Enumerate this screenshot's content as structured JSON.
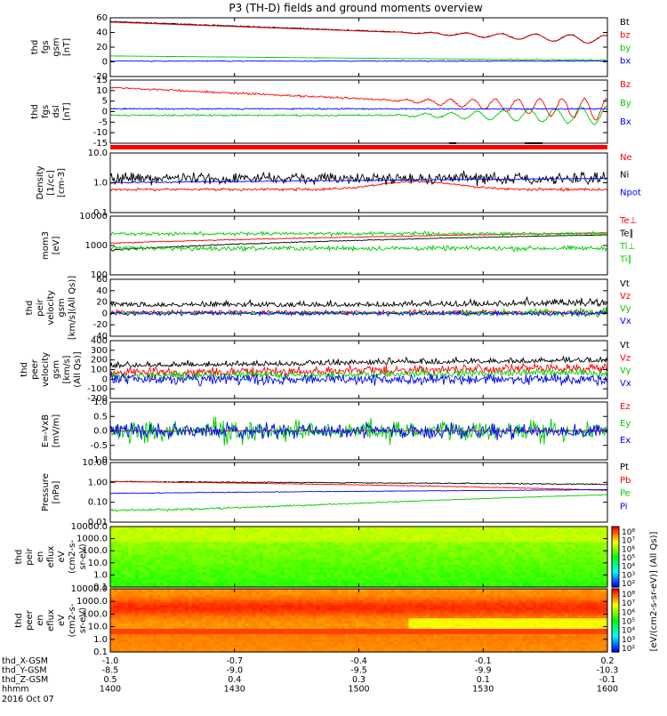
{
  "title": "P3 (TH-D) fields and ground moments overview",
  "colors": {
    "black": "#000000",
    "red": "#ff0000",
    "green": "#00cc00",
    "blue": "#0000ff",
    "bar": "#ff0000"
  },
  "chart_data": [
    {
      "type": "line",
      "id": "fgs",
      "ylabel": [
        "thd",
        "fgs",
        "gsm",
        "[nT]"
      ],
      "ylim": [
        -20,
        60
      ],
      "scale": "linear",
      "yticks": [
        "60",
        "40",
        "20",
        "0",
        "-20"
      ],
      "series": [
        {
          "name": "Bt",
          "color": "black"
        },
        {
          "name": "bz",
          "color": "red"
        },
        {
          "name": "by",
          "color": "green"
        },
        {
          "name": "bx",
          "color": "blue"
        }
      ]
    },
    {
      "type": "line",
      "id": "fgs_dsl",
      "ylabel": [
        "thd",
        "fgs",
        "dsl",
        "[nT]"
      ],
      "ylim": [
        -18,
        16
      ],
      "scale": "linear",
      "yticks": [
        "15",
        "10",
        "5",
        "0",
        "-5",
        "-10",
        "-15"
      ],
      "series": [
        {
          "name": "Bz",
          "color": "red"
        },
        {
          "name": "By",
          "color": "green"
        },
        {
          "name": "Bx",
          "color": "blue"
        }
      ]
    },
    {
      "type": "line",
      "id": "density",
      "ylabel": [
        "Density",
        "[1/cc]",
        "[cm-3]"
      ],
      "ylim": [
        0.1,
        10
      ],
      "scale": "log",
      "yticks": [
        "10.0",
        "1.0",
        "0.1"
      ],
      "series": [
        {
          "name": "Ne",
          "color": "red"
        },
        {
          "name": "Ni",
          "color": "black"
        },
        {
          "name": "Npot",
          "color": "blue"
        }
      ]
    },
    {
      "type": "line",
      "id": "temp",
      "ylabel": [
        "mom3",
        "[eV]"
      ],
      "ylim": [
        100,
        10000
      ],
      "scale": "log",
      "yticks": [
        "10000",
        "1000",
        "100"
      ],
      "series": [
        {
          "name": "Te⊥",
          "color": "red"
        },
        {
          "name": "Te∥",
          "color": "black"
        },
        {
          "name": "Ti⊥",
          "color": "green"
        },
        {
          "name": "Ti∥",
          "color": "green"
        }
      ]
    },
    {
      "type": "line",
      "id": "peir",
      "ylabel": [
        "thd",
        "peir",
        "velocity",
        "gsm",
        "[km/s](All Qs)]"
      ],
      "ylim": [
        -40,
        60
      ],
      "scale": "linear",
      "yticks": [
        "60",
        "40",
        "20",
        "0",
        "-20",
        "-40"
      ],
      "series": [
        {
          "name": "Vt",
          "color": "black"
        },
        {
          "name": "Vz",
          "color": "red"
        },
        {
          "name": "Vy",
          "color": "green"
        },
        {
          "name": "Vx",
          "color": "blue"
        }
      ]
    },
    {
      "type": "line",
      "id": "peer",
      "ylabel": [
        "thd",
        "peer",
        "velocity",
        "gsm",
        "[km/s]",
        "(All Qs)]"
      ],
      "ylim": [
        -200,
        400
      ],
      "scale": "linear",
      "yticks": [
        "400",
        "300",
        "200",
        "100",
        "0",
        "-100",
        "-200"
      ],
      "series": [
        {
          "name": "Vt",
          "color": "black"
        },
        {
          "name": "Vz",
          "color": "red"
        },
        {
          "name": "Vy",
          "color": "green"
        },
        {
          "name": "Vx",
          "color": "blue"
        }
      ]
    },
    {
      "type": "line",
      "id": "efield",
      "ylabel": [
        "E=-VxB",
        "[mV/m]"
      ],
      "ylim": [
        -1,
        1
      ],
      "scale": "linear",
      "yticks": [
        "1.0",
        "0.5",
        "0.0",
        "-0.5",
        "-1.0"
      ],
      "series": [
        {
          "name": "Ez",
          "color": "red"
        },
        {
          "name": "Ey",
          "color": "green"
        },
        {
          "name": "Ex",
          "color": "blue"
        }
      ]
    },
    {
      "type": "line",
      "id": "pressure",
      "ylabel": [
        "Pressure",
        "[nPa]"
      ],
      "ylim": [
        0.01,
        10
      ],
      "scale": "log",
      "yticks": [
        "10.00",
        "1.00",
        "0.10",
        "0.01"
      ],
      "series": [
        {
          "name": "Pt",
          "color": "black"
        },
        {
          "name": "Pb",
          "color": "red"
        },
        {
          "name": "Pe",
          "color": "green"
        },
        {
          "name": "Pi",
          "color": "blue"
        }
      ]
    },
    {
      "type": "heatmap",
      "id": "peir_spec",
      "ylabel": [
        "thd",
        "peir",
        "en",
        "eflux",
        "eV",
        "(cm2-s-",
        "sr-eV)"
      ],
      "ylim": [
        0.1,
        10000
      ],
      "scale": "log",
      "yticks": [
        "10000.0",
        "1000.0",
        "100.0",
        "10.0",
        "1.0",
        "0.1"
      ]
    },
    {
      "type": "heatmap",
      "id": "peer_spec",
      "ylabel": [
        "thd",
        "peer",
        "en",
        "eflux",
        "eV",
        "(cm2-s-",
        "sr-eV)"
      ],
      "ylim": [
        0.1,
        10000
      ],
      "scale": "log",
      "yticks": [
        "10000.0",
        "1000.0",
        "100.0",
        "10.0",
        "1.0",
        "0.1"
      ]
    }
  ],
  "colorbar": {
    "label": "[eV/(cm2-s-sr-eV)] (All Qs)]",
    "upper_ticks": [
      "10⁸",
      "10⁷",
      "10⁶",
      "10⁵",
      "10⁴",
      "10³",
      "10²"
    ],
    "lower_ticks": [
      "10⁸",
      "10⁷",
      "10⁶",
      "10⁵",
      "10⁴",
      "10³",
      "10²"
    ]
  },
  "xaxis": {
    "rows": [
      {
        "label": "thd_X-GSM",
        "values": [
          "-1.0",
          "-0.7",
          "-0.4",
          "-0.1",
          "0.2"
        ]
      },
      {
        "label": "thd_Y-GSM",
        "values": [
          "-8.5",
          "-9.0",
          "-9.5",
          "-9.9",
          "-10.3"
        ]
      },
      {
        "label": "thd_Z-GSM",
        "values": [
          "0.5",
          "0.4",
          "0.3",
          "0.1",
          "-0.1"
        ]
      },
      {
        "label": "hhmm",
        "values": [
          "1400",
          "1430",
          "1500",
          "1530",
          "1600"
        ]
      }
    ],
    "date": "2016 Oct 07"
  }
}
